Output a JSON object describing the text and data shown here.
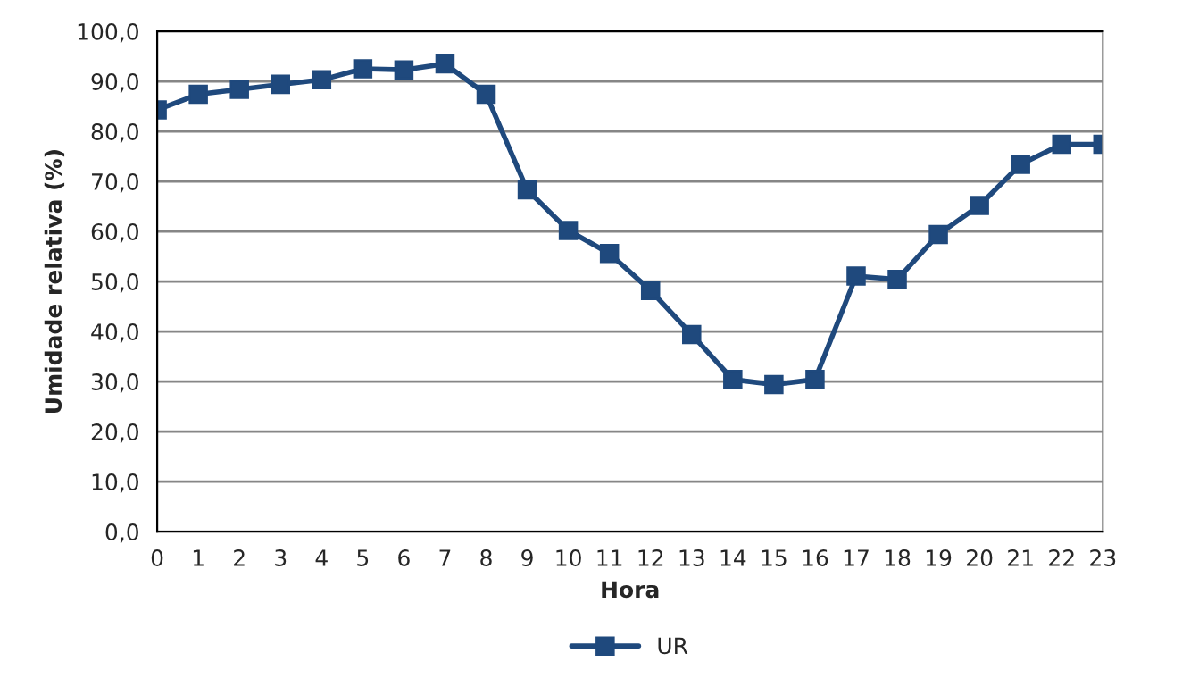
{
  "chart_data": {
    "type": "line",
    "xlabel": "Hora",
    "ylabel": "Umidade relativa (%)",
    "categories": [
      "0",
      "1",
      "2",
      "3",
      "4",
      "5",
      "6",
      "7",
      "8",
      "9",
      "10",
      "11",
      "12",
      "13",
      "14",
      "15",
      "16",
      "17",
      "18",
      "19",
      "20",
      "21",
      "22",
      "23"
    ],
    "series": [
      {
        "name": "UR",
        "color": "#1f497d",
        "values": [
          84.3,
          87.4,
          88.4,
          89.4,
          90.3,
          92.5,
          92.3,
          93.5,
          87.4,
          68.3,
          60.2,
          55.6,
          48.2,
          39.4,
          30.4,
          29.4,
          30.4,
          51.1,
          50.4,
          59.4,
          65.2,
          73.4,
          77.4,
          77.4
        ]
      }
    ],
    "ylim": [
      0,
      100
    ],
    "yticks": [
      {
        "value": 0,
        "label": "0,0"
      },
      {
        "value": 10,
        "label": "10,0"
      },
      {
        "value": 20,
        "label": "20,0"
      },
      {
        "value": 30,
        "label": "30,0"
      },
      {
        "value": 40,
        "label": "40,0"
      },
      {
        "value": 50,
        "label": "50,0"
      },
      {
        "value": 60,
        "label": "60,0"
      },
      {
        "value": 70,
        "label": "70,0"
      },
      {
        "value": 80,
        "label": "80,0"
      },
      {
        "value": 90,
        "label": "90,0"
      },
      {
        "value": 100,
        "label": "100,0"
      }
    ],
    "grid": "y",
    "legend": "bottom",
    "marker": "square",
    "line_style": "solid"
  }
}
